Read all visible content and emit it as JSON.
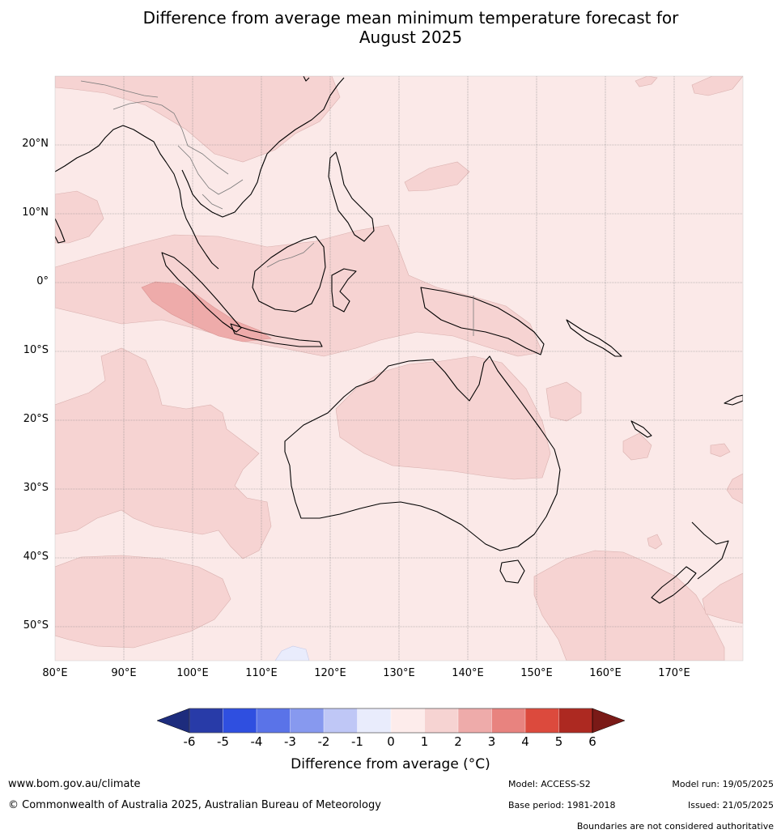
{
  "title": {
    "line1": "Difference from average mean minimum temperature forecast for",
    "line2": "August 2025"
  },
  "map": {
    "lat_labels": [
      "20°N",
      "10°N",
      "0°",
      "10°S",
      "20°S",
      "30°S",
      "40°S",
      "50°S"
    ],
    "lon_labels": [
      "80°E",
      "90°E",
      "100°E",
      "110°E",
      "120°E",
      "130°E",
      "140°E",
      "150°E",
      "160°E",
      "170°E"
    ],
    "background_color": "#fbe9e8"
  },
  "colorbar": {
    "ticks": [
      "-6",
      "-5",
      "-4",
      "-3",
      "-2",
      "-1",
      "0",
      "1",
      "2",
      "3",
      "4",
      "5",
      "6"
    ],
    "colors": [
      "#283ba8",
      "#2f4fe0",
      "#5a73e8",
      "#8799ef",
      "#bfc7f6",
      "#e9ecfc",
      "#fdeceb",
      "#f6d3d2",
      "#eeabaa",
      "#e8837f",
      "#dc4a3d",
      "#ad2921"
    ],
    "under_color": "#1d2c7d",
    "over_color": "#7a1a17",
    "label": "Difference from average ($^\\circ$C)",
    "label_display": "Difference from average (°C)"
  },
  "footer": {
    "website": "www.bom.gov.au/climate",
    "copyright": "© Commonwealth of Australia 2025, Australian Bureau of Meteorology",
    "model": "Model: ACCESS-S2",
    "base_period": "Base period: 1981-2018",
    "model_run": "Model run: 19/05/2025",
    "issued": "Issued: 21/05/2025",
    "disclaimer": "Boundaries are not considered authoritative"
  }
}
